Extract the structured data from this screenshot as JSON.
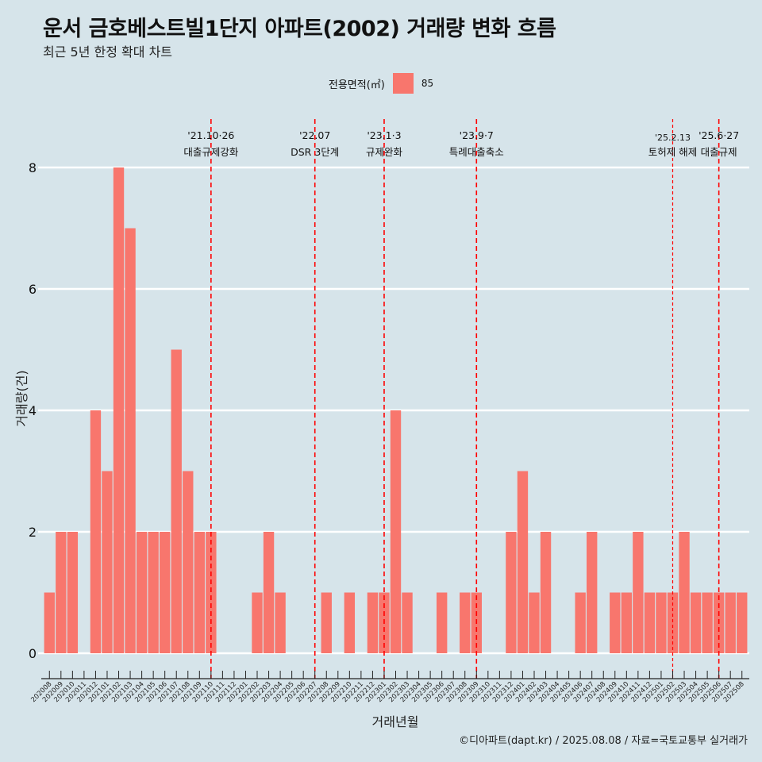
{
  "title": "운서 금호베스트빌1단지 아파트(2002) 거래량 변화 흐름",
  "subtitle": "최근 5년 한정 확대 차트",
  "legend": {
    "title": "전용면적(㎡)",
    "entries": [
      "85"
    ]
  },
  "caption": "©디아파트(dapt.kr) / 2025.08.08 / 자료=국토교통부 실거래가",
  "colors": {
    "bar": "#f8766d",
    "vline": "#ff0000",
    "grid": "#ffffff",
    "background": "#d6e4ea"
  },
  "chart_data": {
    "type": "bar",
    "xlabel": "거래년월",
    "ylabel": "거래량(건)",
    "ylim": [
      0,
      8
    ],
    "yticks": [
      0,
      2,
      4,
      6,
      8
    ],
    "categories": [
      "202008",
      "202009",
      "202010",
      "202011",
      "202012",
      "202101",
      "202102",
      "202103",
      "202104",
      "202105",
      "202106",
      "202107",
      "202108",
      "202109",
      "202110",
      "202111",
      "202112",
      "202201",
      "202202",
      "202203",
      "202204",
      "202205",
      "202206",
      "202207",
      "202208",
      "202209",
      "202210",
      "202211",
      "202212",
      "202301",
      "202302",
      "202303",
      "202304",
      "202305",
      "202306",
      "202307",
      "202308",
      "202309",
      "202310",
      "202311",
      "202312",
      "202401",
      "202402",
      "202403",
      "202404",
      "202405",
      "202406",
      "202407",
      "202408",
      "202409",
      "202410",
      "202411",
      "202412",
      "202501",
      "202502",
      "202503",
      "202504",
      "202505",
      "202506",
      "202507",
      "202508"
    ],
    "series": [
      {
        "name": "85",
        "values": [
          1,
          2,
          2,
          0,
          4,
          3,
          8,
          7,
          2,
          2,
          2,
          5,
          3,
          2,
          2,
          0,
          0,
          0,
          1,
          2,
          1,
          0,
          0,
          0,
          1,
          0,
          1,
          0,
          1,
          1,
          4,
          1,
          0,
          0,
          1,
          0,
          1,
          1,
          0,
          0,
          2,
          3,
          1,
          2,
          0,
          0,
          1,
          2,
          0,
          1,
          1,
          2,
          1,
          1,
          1,
          2,
          1,
          1,
          1,
          1,
          1
        ]
      }
    ],
    "annotations": [
      {
        "category": "202110",
        "date": "'21.10·26",
        "label": "대출규제강화",
        "dash": "long"
      },
      {
        "category": "202207",
        "date": "'22.07",
        "label": "DSR 3단계",
        "dash": "long"
      },
      {
        "category": "202301",
        "date": "'23.1·3",
        "label": "규제완화",
        "dash": "long"
      },
      {
        "category": "202309",
        "date": "'23.9·7",
        "label": "특례대출축소",
        "dash": "long"
      },
      {
        "category": "202502",
        "date": "'25.2.13",
        "label": "토허제 해제",
        "dash": "short"
      },
      {
        "category": "202506",
        "date": "'25.6·27",
        "label": "대출규제",
        "dash": "long"
      }
    ]
  }
}
